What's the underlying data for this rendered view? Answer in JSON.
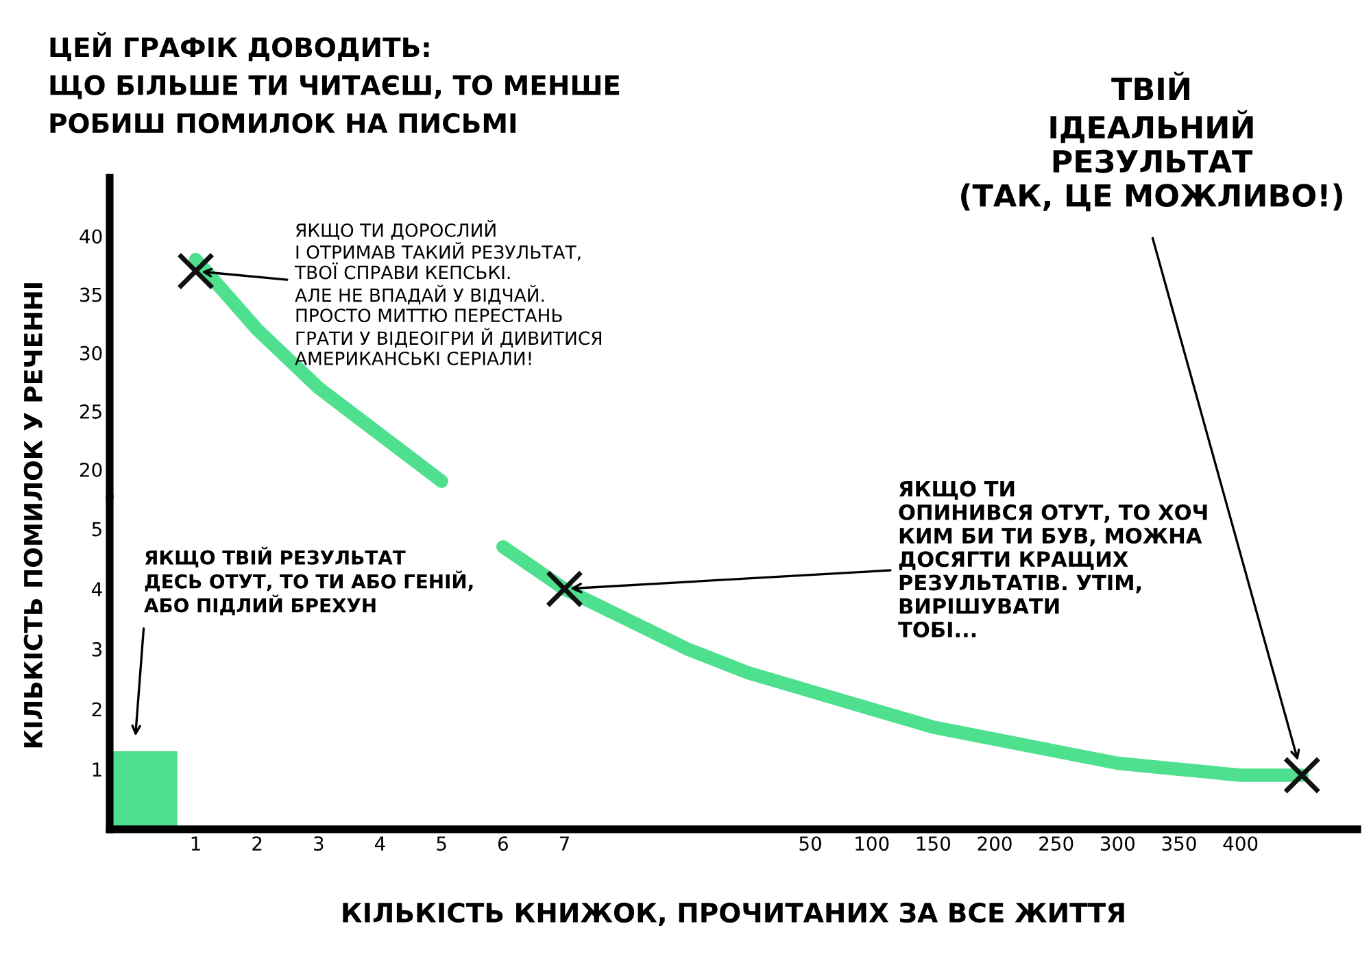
{
  "chart_data": [
    {
      "type": "line",
      "title": "ЦЕЙ ГРАФІК ДОВОДИТЬ:\nЩО БІЛЬШЕ ТИ ЧИТАЄШ, ТО МЕНШЕ\nРОБИШ ПОМИЛОК НА ПИСЬМІ",
      "categories": [
        null,
        "1",
        "2",
        "3",
        "4",
        "5",
        "6",
        "7",
        null,
        null,
        null,
        "50",
        "100",
        "150",
        "200",
        "250",
        "300",
        "350",
        "400",
        null
      ],
      "ylim": [
        17.5,
        45
      ],
      "yticks": [
        20,
        25,
        30,
        35,
        40
      ],
      "tick_labels": "y",
      "series": [
        {
          "color": "#4ee08e",
          "values": [
            null,
            38,
            32,
            27,
            23,
            19,
            null,
            null,
            null,
            null,
            null,
            null,
            null,
            null,
            null,
            null,
            null,
            null,
            null,
            null
          ]
        },
        {
          "type": "scatter",
          "color": "#111111",
          "marker": "cross",
          "values": [
            null,
            37,
            null,
            null,
            null,
            null,
            null,
            null,
            null,
            null,
            null,
            null,
            null,
            null,
            null,
            null,
            null,
            null,
            null,
            null
          ]
        }
      ],
      "annotations": [
        {
          "text": "ЯКЩО ТИ ДОРОСЛИЙ\nІ ОТРИМАВ ТАКИЙ РЕЗУЛЬТАТ,\nТВОЇ СПРАВИ КЕПСЬКІ.\nАЛЕ НЕ ВПАДАЙ У ВІДЧАЙ.\nПРОСТО МИТТЮ ПЕРЕСТАНЬ\nГРАТИ У ВІДЕОІГРИ Й ДИВИТИСЯ\nАМЕРИКАНСЬКІ СЕРІАЛИ!",
          "x": "1",
          "y": 37
        }
      ]
    },
    {
      "type": "line",
      "xlabel": "КІЛЬКІСТЬ КНИЖОК, ПРОЧИТАНИХ ЗА ВСЕ ЖИТТЯ",
      "ylabel": "КІЛЬКІСТЬ ПОМИЛОК У РЕЧЕННІ",
      "categories": [
        null,
        "1",
        "2",
        "3",
        "4",
        "5",
        "6",
        "7",
        null,
        null,
        null,
        "50",
        "100",
        "150",
        "200",
        "250",
        "300",
        "350",
        "400",
        null
      ],
      "ylim": [
        0,
        5.5
      ],
      "yticks": [
        1,
        2,
        3,
        4,
        5
      ],
      "series": [
        {
          "type": "bar",
          "color": "#4ee08e",
          "values": [
            1.3,
            null,
            null,
            null,
            null,
            null,
            null,
            null,
            null,
            null,
            null,
            null,
            null,
            null,
            null,
            null,
            null,
            null,
            null,
            null
          ]
        },
        {
          "color": "#4ee08e",
          "values": [
            null,
            null,
            null,
            null,
            null,
            null,
            4.7,
            4,
            3.5,
            3,
            2.6,
            2.3,
            2,
            1.7,
            1.5,
            1.3,
            1.1,
            1,
            0.9,
            0.9
          ]
        },
        {
          "type": "scatter",
          "color": "#111111",
          "marker": "cross",
          "values": [
            null,
            null,
            null,
            null,
            null,
            null,
            null,
            4,
            null,
            null,
            null,
            null,
            null,
            null,
            null,
            null,
            null,
            null,
            null,
            0.9
          ]
        }
      ],
      "annotations": [
        "ЯКЩО ТВІЙ РЕЗУЛЬТАТ\nДЕСЬ ОТУТ, ТО ТИ АБО ГЕНІЙ,\nАБО ПІДЛИЙ БРЕХУН",
        {
          "text": "ЯКЩО ТИ\nОПИНИВСЯ ОТУТ, ТО ХОЧ\nКИМ БИ ТИ БУВ, МОЖНА\nДОСЯГТИ КРАЩИХ\nРЕЗУЛЬТАТІВ. УТІМ,\nВИРІШУВАТИ\nТОБІ...",
          "x": "7",
          "y": 4
        },
        "ТВІЙ\nІДЕАЛЬНИЙ\nРЕЗУЛЬТАТ\n(ТАК, ЦЕ МОЖЛИВО!)"
      ]
    }
  ]
}
